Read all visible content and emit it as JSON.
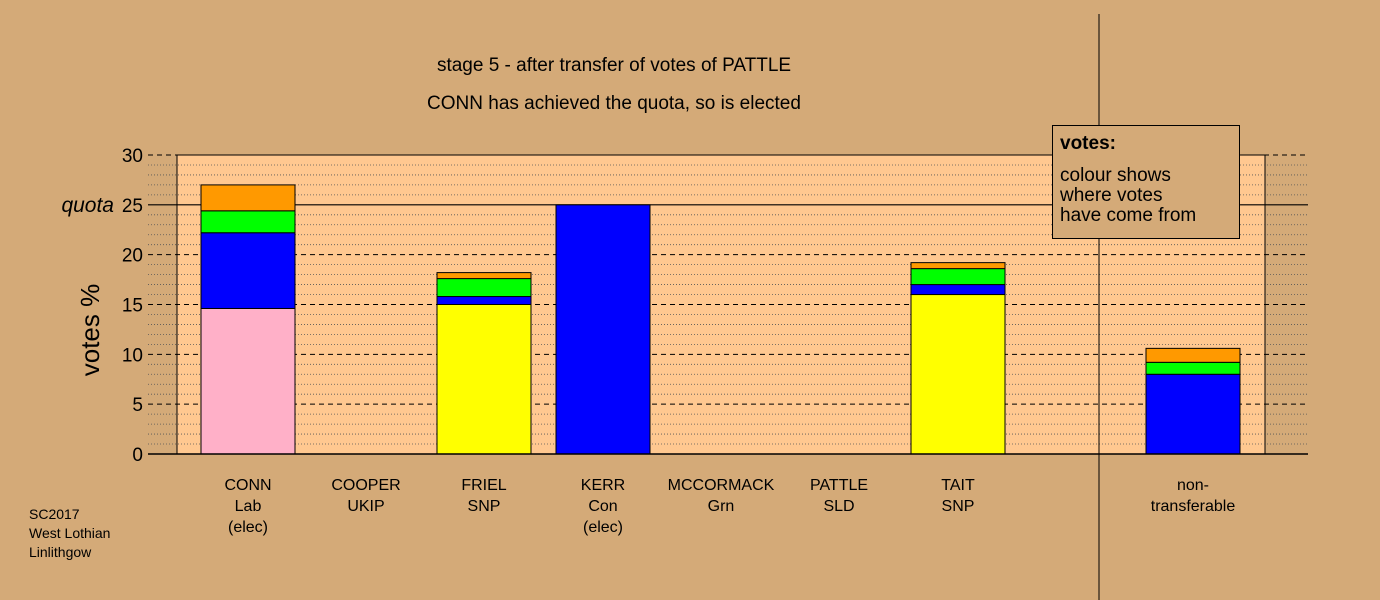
{
  "title_line1": "stage 5 - after transfer of votes of PATTLE",
  "title_line2": "CONN has achieved the quota, so is elected",
  "legend": {
    "heading": "votes:",
    "lines": [
      "colour shows",
      "where votes",
      "have come from"
    ]
  },
  "source": [
    "SC2017",
    "West Lothian",
    "Linlithgow"
  ],
  "colors": {
    "background": "#d4aa78",
    "plot_area": "#ffc890",
    "Lab": "#ffb0c8",
    "SNP": "#ffff00",
    "Con": "#0000ff",
    "Grn": "#00ff00",
    "SLD": "#ff9900"
  },
  "chart_data": {
    "type": "bar",
    "stacked": true,
    "ylabel": "votes %",
    "ylim": [
      0,
      30
    ],
    "yticks": [
      0,
      5,
      10,
      15,
      20,
      25,
      30
    ],
    "quota": 25,
    "quota_label": "quota",
    "grid": "dashed major lines at every 5, dotted minor lines at every 1",
    "legend_placement": "top-right",
    "categories": [
      {
        "lines": [
          "CONN",
          "Lab",
          "(elec)"
        ]
      },
      {
        "lines": [
          "COOPER",
          "UKIP"
        ]
      },
      {
        "lines": [
          "FRIEL",
          "SNP"
        ]
      },
      {
        "lines": [
          "KERR",
          "Con",
          "(elec)"
        ]
      },
      {
        "lines": [
          "MCCORMACK",
          "Grn"
        ]
      },
      {
        "lines": [
          "PATTLE",
          "SLD"
        ]
      },
      {
        "lines": [
          "TAIT",
          "SNP"
        ]
      },
      {
        "lines": [
          "non-",
          "transferable"
        ]
      }
    ],
    "stacks": [
      [
        {
          "source": "Lab",
          "color": "#ffb0c8",
          "value": 14.6
        },
        {
          "source": "Con",
          "color": "#0000ff",
          "value": 7.6
        },
        {
          "source": "Grn",
          "color": "#00ff00",
          "value": 2.2
        },
        {
          "source": "SLD",
          "color": "#ff9900",
          "value": 2.6
        }
      ],
      [],
      [
        {
          "source": "SNP",
          "color": "#ffff00",
          "value": 15.0
        },
        {
          "source": "Con",
          "color": "#0000ff",
          "value": 0.8
        },
        {
          "source": "Grn",
          "color": "#00ff00",
          "value": 1.8
        },
        {
          "source": "SLD",
          "color": "#ff9900",
          "value": 0.6
        }
      ],
      [
        {
          "source": "Con",
          "color": "#0000ff",
          "value": 25.0
        }
      ],
      [],
      [],
      [
        {
          "source": "SNP",
          "color": "#ffff00",
          "value": 16.0
        },
        {
          "source": "Con",
          "color": "#0000ff",
          "value": 1.0
        },
        {
          "source": "Grn",
          "color": "#00ff00",
          "value": 1.6
        },
        {
          "source": "SLD",
          "color": "#ff9900",
          "value": 0.6
        }
      ],
      [
        {
          "source": "Con",
          "color": "#0000ff",
          "value": 8.0
        },
        {
          "source": "Grn",
          "color": "#00ff00",
          "value": 1.2
        },
        {
          "source": "SLD",
          "color": "#ff9900",
          "value": 1.4
        }
      ]
    ]
  }
}
